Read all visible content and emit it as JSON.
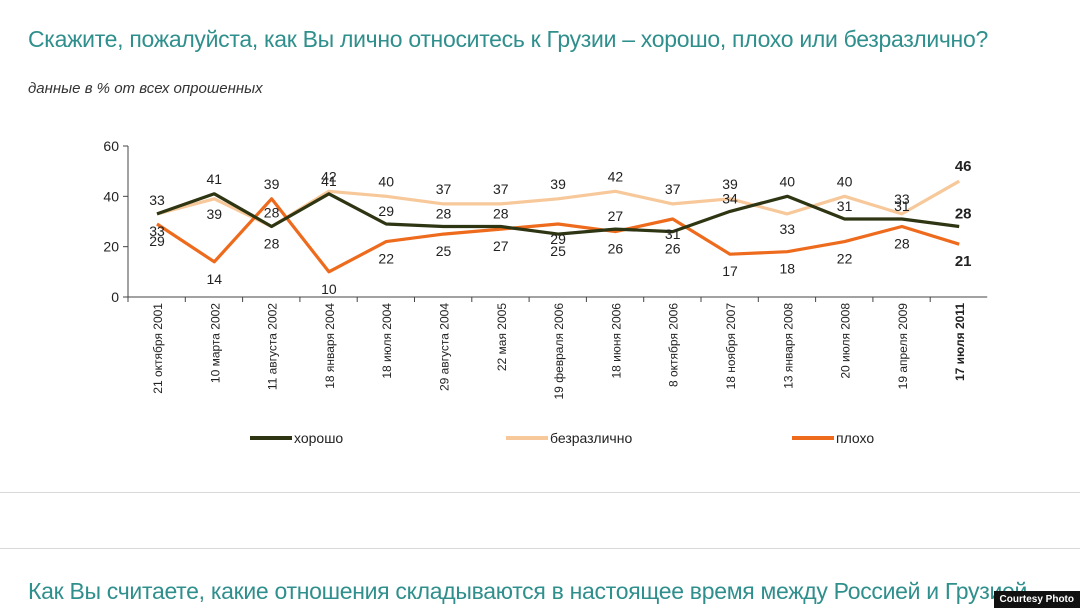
{
  "header": {
    "title": "Скажите, пожалуйста, как Вы лично относитесь к Грузии – хорошо, плохо или безразлично?",
    "subtitle": "данные в % от всех опрошенных"
  },
  "footer": {
    "next_title": "Как Вы считаете, какие отношения складываются в настоящее время между Россией и Грузией",
    "credit": "Courtesy Photo"
  },
  "chart_data": {
    "type": "line",
    "title": "Скажите, пожалуйста, как Вы лично относитесь к Грузии – хорошо, плохо или безразлично?",
    "subtitle": "данные в % от всех опрошенных",
    "xlabel": "",
    "ylabel": "",
    "ylim": [
      0,
      60
    ],
    "yticks": [
      0,
      20,
      40,
      60
    ],
    "categories": [
      "21 октября 2001",
      "10 марта 2002",
      "11 августа 2002",
      "18 января 2004",
      "18 июля 2004",
      "29 августа 2004",
      "22 мая 2005",
      "19 февраля 2006",
      "18 июня 2006",
      "8 октября 2006",
      "18 ноября 2007",
      "13 января 2008",
      "20 июля 2008",
      "19 апреля 2009",
      "17 июля 2011"
    ],
    "series": [
      {
        "name": "хорошо",
        "color": "#2e3512",
        "values": [
          33,
          41,
          28,
          41,
          29,
          28,
          28,
          25,
          27,
          26,
          34,
          40,
          31,
          31,
          28
        ]
      },
      {
        "name": "безразлично",
        "color": "#f7c89a",
        "values": [
          33,
          39,
          28,
          42,
          40,
          37,
          37,
          39,
          42,
          37,
          39,
          33,
          40,
          33,
          46
        ]
      },
      {
        "name": "плохо",
        "color": "#ee6a1c",
        "values": [
          29,
          14,
          39,
          10,
          22,
          25,
          27,
          29,
          26,
          31,
          17,
          18,
          22,
          28,
          21
        ]
      }
    ],
    "legend_position": "bottom",
    "grid": false,
    "last_point_bold": true
  }
}
